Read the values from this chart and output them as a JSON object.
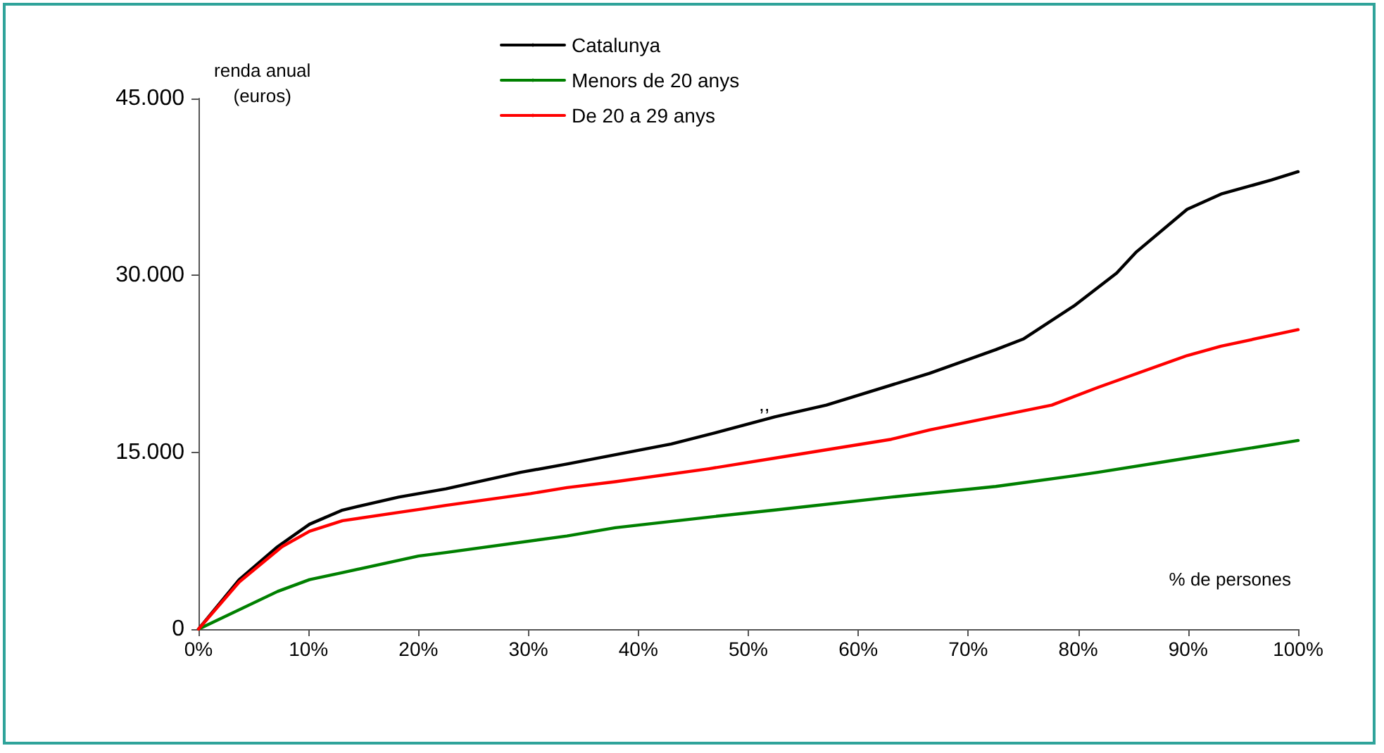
{
  "chart_data": {
    "type": "line",
    "xlabel": "% de persones",
    "ylabel": "renda anual\n(euros)",
    "xlim": [
      0,
      100
    ],
    "xticks": [
      {
        "value": 0,
        "label": "0%"
      },
      {
        "value": 10,
        "label": "10%"
      },
      {
        "value": 20,
        "label": "20%"
      },
      {
        "value": 30,
        "label": "30%"
      },
      {
        "value": 40,
        "label": "40%"
      },
      {
        "value": 50,
        "label": "50%"
      },
      {
        "value": 60,
        "label": "60%"
      },
      {
        "value": 70,
        "label": "70%"
      },
      {
        "value": 80,
        "label": "80%"
      },
      {
        "value": 90,
        "label": "90%"
      },
      {
        "value": 100,
        "label": "100%"
      }
    ],
    "ylim": [
      0,
      45000
    ],
    "yticks": [
      {
        "value": 0,
        "label": "0"
      },
      {
        "value": 15000,
        "label": "15.000"
      },
      {
        "value": 30000,
        "label": "30.000"
      },
      {
        "value": 45000,
        "label": "45.000"
      }
    ],
    "grid": false,
    "legend": "top",
    "marker": "none",
    "line_style": "solid",
    "annotations": [
      ",,"
    ],
    "series": [
      {
        "name": "Catalunya",
        "color": "#000000",
        "x": [
          0,
          3.7,
          7.2,
          10.1,
          13.1,
          18.2,
          22.5,
          29.3,
          33.5,
          43,
          47.2,
          52.4,
          57.1,
          66.5,
          72.5,
          75,
          79.6,
          83.5,
          85.3,
          89.9,
          93,
          97.6,
          100
        ],
        "values": [
          0,
          4200,
          7000,
          8900,
          10100,
          11200,
          11900,
          13300,
          14000,
          15700,
          16700,
          18000,
          19000,
          21700,
          23700,
          24600,
          27400,
          30200,
          32000,
          35600,
          36900,
          38100,
          38800
        ]
      },
      {
        "name": "Menors de 20 anys",
        "color": "#008000",
        "x": [
          0,
          7.2,
          10.1,
          13.1,
          20,
          22.5,
          33.5,
          37.9,
          46.4,
          52.4,
          63,
          72.5,
          79.6,
          81.8,
          89.9,
          100
        ],
        "values": [
          0,
          3200,
          4200,
          4800,
          6200,
          6500,
          7900,
          8600,
          9500,
          10100,
          11200,
          12100,
          13000,
          13300,
          14500,
          16000
        ]
      },
      {
        "name": "De 20 a 29 anys",
        "color": "#ff0000",
        "x": [
          0,
          3.7,
          7.6,
          10.1,
          13.1,
          18.2,
          20.4,
          22.5,
          30.2,
          33.5,
          37.9,
          46.4,
          52.4,
          63,
          66.5,
          77.6,
          81.8,
          89.9,
          93,
          100
        ],
        "values": [
          0,
          4000,
          7000,
          8300,
          9200,
          9900,
          10200,
          10500,
          11500,
          12000,
          12500,
          13600,
          14500,
          16100,
          16900,
          19000,
          20500,
          23200,
          24000,
          25400
        ]
      }
    ]
  }
}
